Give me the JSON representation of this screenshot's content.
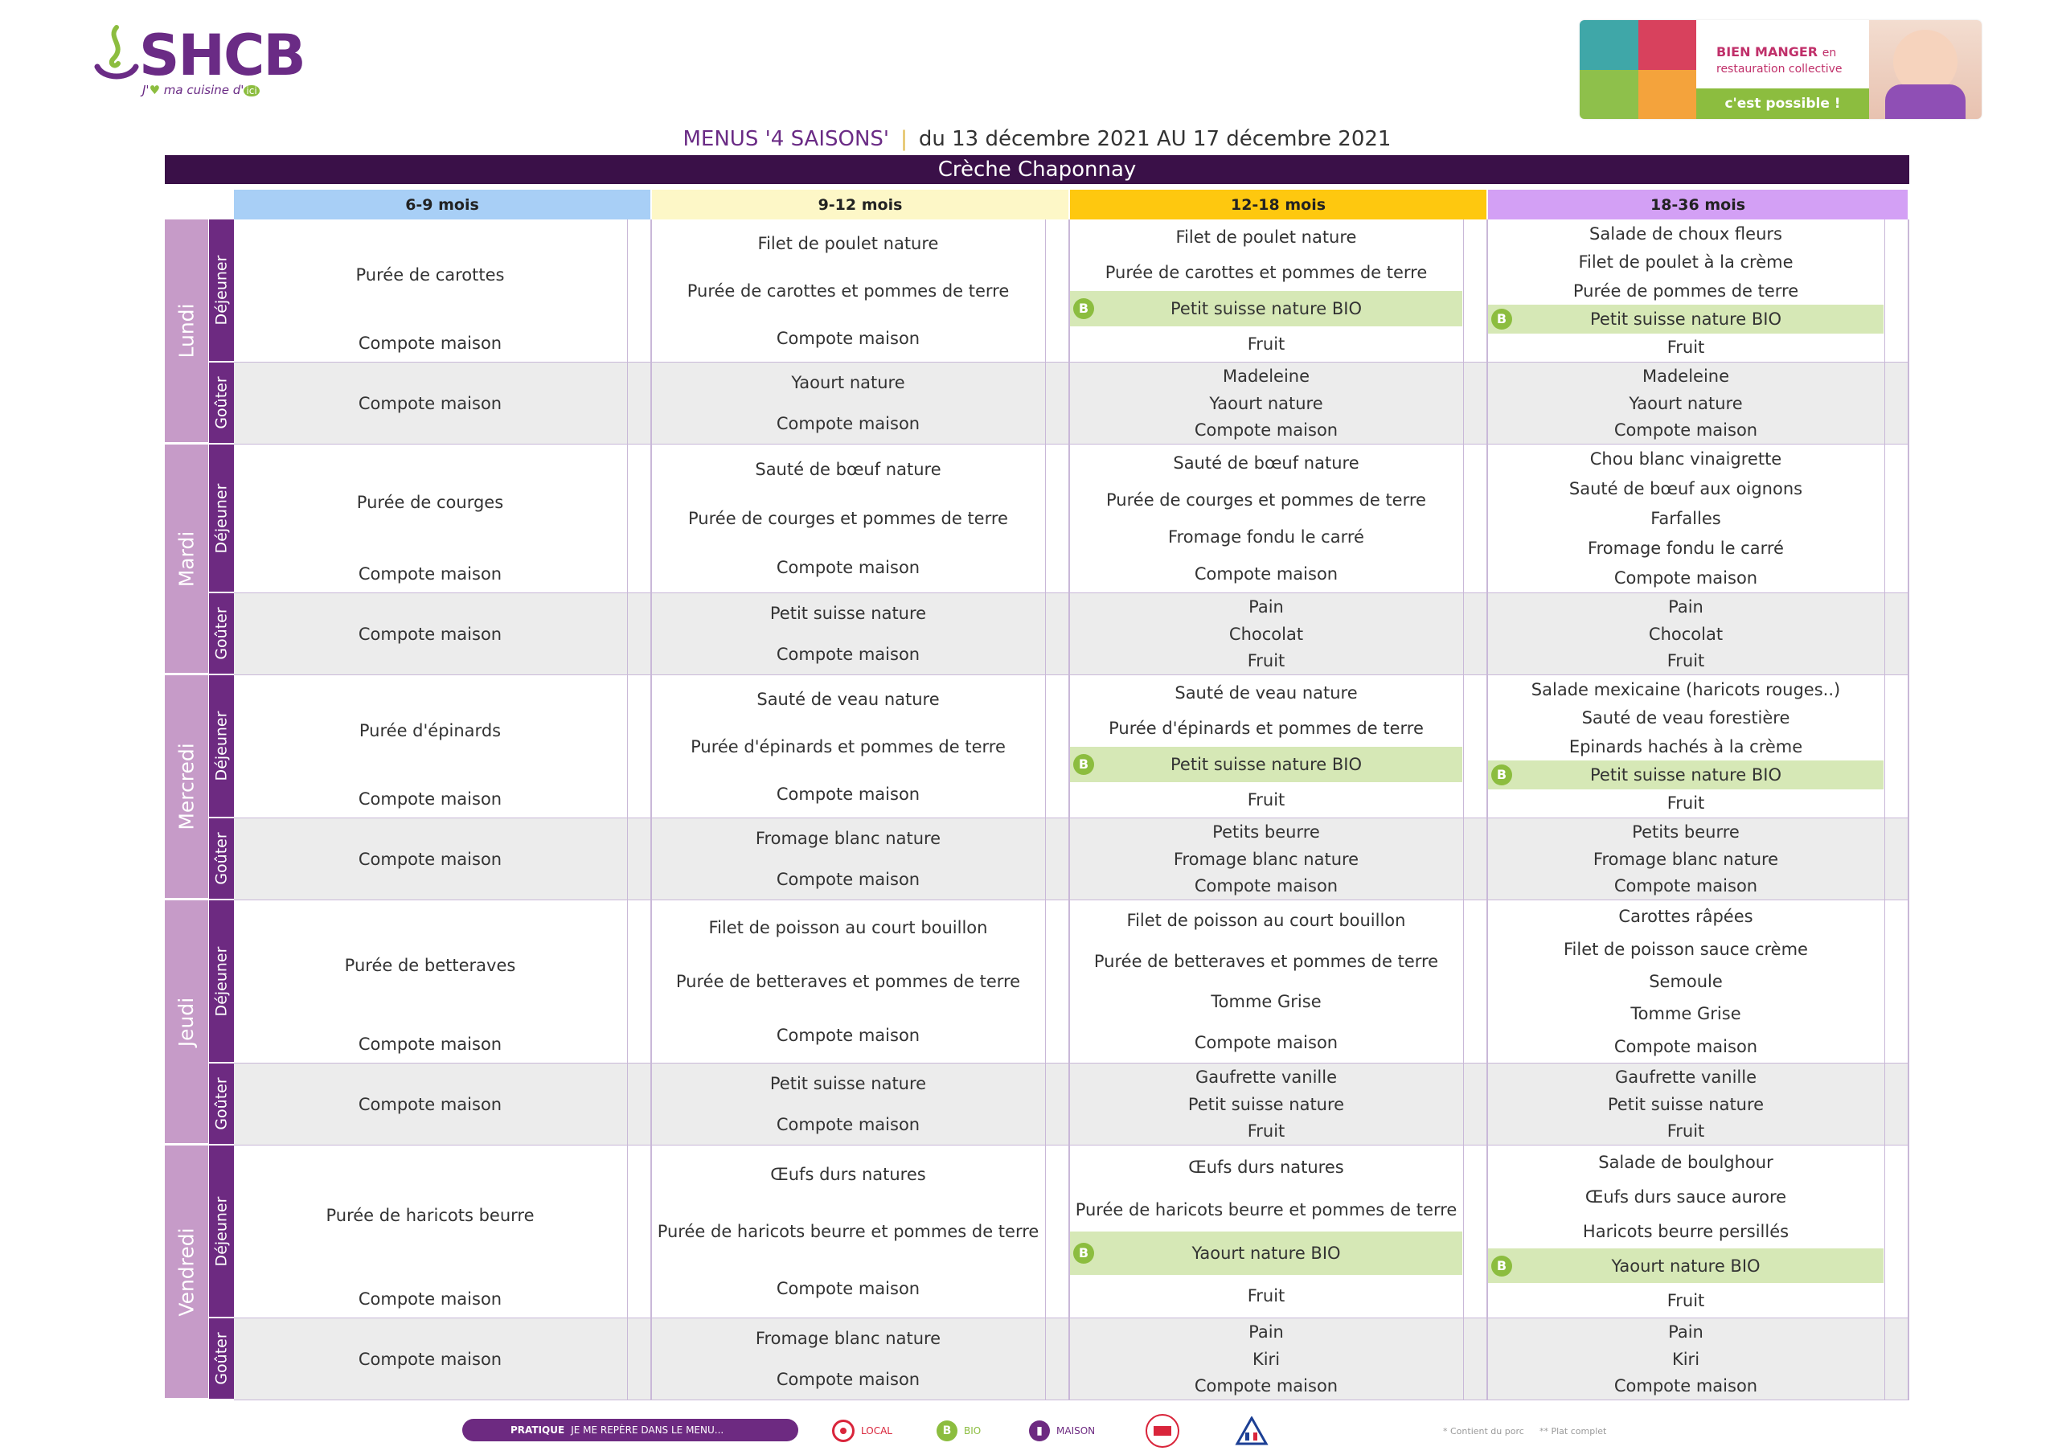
{
  "logo": {
    "brand": "SHCB",
    "tag_pre": "J'",
    "tag_heart": "♥",
    "tag_mid": " ma cuisine d'",
    "tag_ici": "ici"
  },
  "banner": {
    "line1": "BIEN MANGER",
    "line1_en": "en",
    "line2": "restauration collective",
    "pill": "c'est possible !"
  },
  "header": {
    "menus": "MENUS '4 SAISONS'",
    "separator": "|",
    "dates": "du 13 décembre 2021 AU 17 décembre 2021",
    "site": "Crèche Chaponnay"
  },
  "age_groups": [
    "6-9 mois",
    "9-12 mois",
    "12-18 mois",
    "18-36 mois"
  ],
  "meals": {
    "lunch": "Déjeuner",
    "snack": "Goûter"
  },
  "days": [
    {
      "name": "Lundi",
      "lunch": [
        [
          "Purée de carottes",
          "Compote maison"
        ],
        [
          "Filet de poulet nature",
          "Purée de carottes et pommes de terre",
          "Compote maison"
        ],
        [
          "Filet de poulet nature",
          "Purée de carottes et pommes de terre",
          {
            "text": "Petit suisse nature BIO",
            "bio": true
          },
          "Fruit"
        ],
        [
          "Salade de choux fleurs",
          "Filet de poulet à la crème",
          "Purée de pommes de terre",
          {
            "text": "Petit suisse nature BIO",
            "bio": true
          },
          "Fruit"
        ]
      ],
      "snack": [
        [
          "Compote maison"
        ],
        [
          "Yaourt nature",
          "Compote maison"
        ],
        [
          "Madeleine",
          "Yaourt nature",
          "Compote maison"
        ],
        [
          "Madeleine",
          "Yaourt nature",
          "Compote maison"
        ]
      ]
    },
    {
      "name": "Mardi",
      "lunch": [
        [
          "Purée de courges",
          "Compote maison"
        ],
        [
          "Sauté de bœuf nature",
          "Purée de courges et pommes de terre",
          "Compote maison"
        ],
        [
          "Sauté de bœuf nature",
          "Purée de courges et pommes de terre",
          "Fromage fondu le carré",
          "Compote maison"
        ],
        [
          "Chou blanc vinaigrette",
          "Sauté de bœuf aux oignons",
          "Farfalles",
          "Fromage fondu le carré",
          "Compote maison"
        ]
      ],
      "snack": [
        [
          "Compote maison"
        ],
        [
          "Petit suisse nature",
          "Compote maison"
        ],
        [
          "Pain",
          "Chocolat",
          "Fruit"
        ],
        [
          "Pain",
          "Chocolat",
          "Fruit"
        ]
      ]
    },
    {
      "name": "Mercredi",
      "lunch": [
        [
          "Purée d'épinards",
          "Compote maison"
        ],
        [
          "Sauté de veau nature",
          "Purée d'épinards et pommes de terre",
          "Compote maison"
        ],
        [
          "Sauté de veau nature",
          "Purée d'épinards et pommes de terre",
          {
            "text": "Petit suisse nature BIO",
            "bio": true
          },
          "Fruit"
        ],
        [
          "Salade mexicaine (haricots rouges..)",
          "Sauté de veau forestière",
          "Epinards hachés à la crème",
          {
            "text": "Petit suisse nature BIO",
            "bio": true
          },
          "Fruit"
        ]
      ],
      "snack": [
        [
          "Compote maison"
        ],
        [
          "Fromage blanc nature",
          "Compote maison"
        ],
        [
          "Petits beurre",
          "Fromage blanc nature",
          "Compote maison"
        ],
        [
          "Petits beurre",
          "Fromage blanc nature",
          "Compote maison"
        ]
      ]
    },
    {
      "name": "Jeudi",
      "lunch": [
        [
          "Purée de betteraves",
          "Compote maison"
        ],
        [
          "Filet de poisson au court bouillon",
          "Purée de betteraves et pommes de terre",
          "Compote maison"
        ],
        [
          "Filet de poisson au court bouillon",
          "Purée de betteraves et pommes de terre",
          "Tomme Grise",
          "Compote maison"
        ],
        [
          "Carottes râpées",
          "Filet de poisson sauce crème",
          "Semoule",
          "Tomme Grise",
          "Compote maison"
        ]
      ],
      "snack": [
        [
          "Compote maison"
        ],
        [
          "Petit suisse nature",
          "Compote maison"
        ],
        [
          "Gaufrette vanille",
          "Petit suisse nature",
          "Fruit"
        ],
        [
          "Gaufrette vanille",
          "Petit suisse nature",
          "Fruit"
        ]
      ]
    },
    {
      "name": "Vendredi",
      "lunch": [
        [
          "Purée de haricots beurre",
          "Compote maison"
        ],
        [
          "Œufs durs natures",
          "Purée de haricots beurre et pommes de terre",
          "Compote maison"
        ],
        [
          "Œufs durs natures",
          "Purée de haricots beurre et pommes de terre",
          {
            "text": "Yaourt nature BIO",
            "bio": true
          },
          "Fruit"
        ],
        [
          "Salade de boulghour",
          "Œufs durs sauce aurore",
          "Haricots beurre persillés",
          {
            "text": "Yaourt nature BIO",
            "bio": true
          },
          "Fruit"
        ]
      ],
      "snack": [
        [
          "Compote maison"
        ],
        [
          "Fromage blanc nature",
          "Compote maison"
        ],
        [
          "Pain",
          "Kiri",
          "Compote maison"
        ],
        [
          "Pain",
          "Kiri",
          "Compote maison"
        ]
      ]
    }
  ],
  "bio_badge": "B",
  "legend": {
    "pratique": "PRATIQUE",
    "pratique_text": "JE ME REPÈRE DANS LE MENU...",
    "local": "LOCAL",
    "bio": "BIO",
    "maison": "MAISON",
    "porc": "* Contient du porc",
    "complet": "** Plat complet"
  },
  "colors": {
    "purple_dark": "#3a1048",
    "purple": "#6d2a81",
    "day_band": "#c69bc8",
    "age_6_9": "#a8cff6",
    "age_9_12": "#fdf7c7",
    "age_12_18": "#fec80f",
    "age_18_36": "#d3a0f5",
    "bio_green": "#8cbd3f",
    "bio_row": "#d6e8b6",
    "snack_bg": "#ececec"
  }
}
